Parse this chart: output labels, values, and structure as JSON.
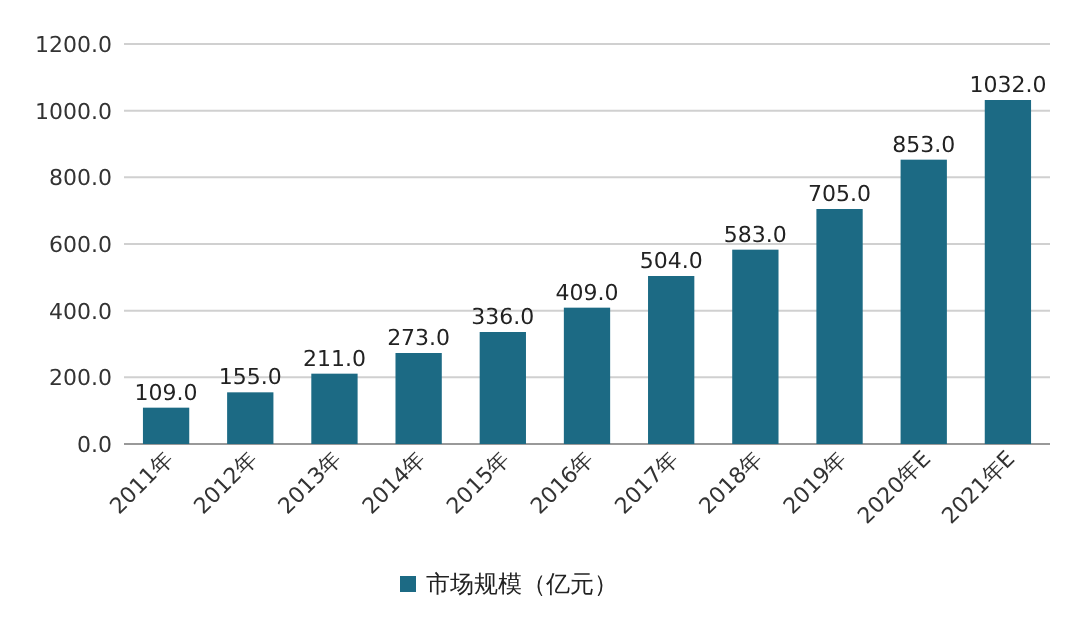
{
  "chart_data": {
    "type": "bar",
    "categories": [
      "2011年",
      "2012年",
      "2013年",
      "2014年",
      "2015年",
      "2016年",
      "2017年",
      "2018年",
      "2019年",
      "2020年E",
      "2021年E"
    ],
    "series": [
      {
        "name": "市场规模（亿元）",
        "color": "#1c6a84",
        "values": [
          109,
          155,
          211,
          273,
          336,
          409,
          504,
          583,
          705,
          853,
          1032
        ]
      }
    ],
    "value_labels": [
      "109.0",
      "155.0",
      "211.0",
      "273.0",
      "336.0",
      "409.0",
      "504.0",
      "583.0",
      "705.0",
      "853.0",
      "1032.0"
    ],
    "ylim": [
      0,
      1200
    ],
    "yticks": [
      {
        "value": 0,
        "label": "0.0"
      },
      {
        "value": 200,
        "label": "200.0"
      },
      {
        "value": 400,
        "label": "400.0"
      },
      {
        "value": 600,
        "label": "600.0"
      },
      {
        "value": 800,
        "label": "800.0"
      },
      {
        "value": 1000,
        "label": "1000.0"
      },
      {
        "value": 1200,
        "label": "1200.0"
      }
    ],
    "grid": "y",
    "legend": "bottom"
  }
}
